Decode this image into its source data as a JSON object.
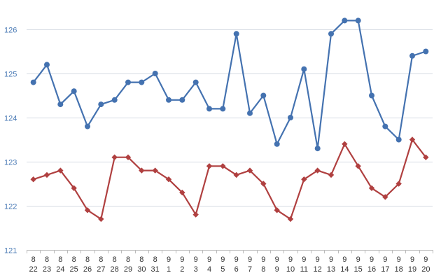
{
  "chart_data": {
    "type": "line",
    "categories": [
      [
        "8",
        "22"
      ],
      [
        "8",
        "23"
      ],
      [
        "8",
        "24"
      ],
      [
        "8",
        "25"
      ],
      [
        "8",
        "26"
      ],
      [
        "8",
        "27"
      ],
      [
        "8",
        "28"
      ],
      [
        "8",
        "29"
      ],
      [
        "8",
        "30"
      ],
      [
        "8",
        "31"
      ],
      [
        "9",
        "1"
      ],
      [
        "9",
        "2"
      ],
      [
        "9",
        "3"
      ],
      [
        "9",
        "4"
      ],
      [
        "9",
        "5"
      ],
      [
        "9",
        "6"
      ],
      [
        "9",
        "7"
      ],
      [
        "9",
        "8"
      ],
      [
        "9",
        "9"
      ],
      [
        "9",
        "10"
      ],
      [
        "9",
        "11"
      ],
      [
        "9",
        "12"
      ],
      [
        "9",
        "13"
      ],
      [
        "9",
        "14"
      ],
      [
        "9",
        "15"
      ],
      [
        "9",
        "16"
      ],
      [
        "9",
        "17"
      ],
      [
        "9",
        "18"
      ],
      [
        "9",
        "19"
      ],
      [
        "9",
        "20"
      ]
    ],
    "ylim": [
      121,
      126
    ],
    "yticks": [
      121,
      122,
      123,
      124,
      125,
      126
    ],
    "grid": true,
    "series": [
      {
        "color": "#4472b0",
        "marker": "circle",
        "values": [
          124.8,
          125.2,
          124.3,
          124.6,
          123.8,
          124.3,
          124.4,
          124.8,
          124.8,
          125.0,
          124.4,
          124.4,
          124.8,
          124.2,
          124.2,
          125.9,
          124.1,
          124.5,
          123.4,
          124.0,
          125.1,
          123.3,
          125.9,
          126.2,
          126.2,
          124.5,
          123.8,
          123.5,
          125.4,
          125.5
        ]
      },
      {
        "color": "#b04040",
        "marker": "diamond",
        "values": [
          122.6,
          122.7,
          122.8,
          122.4,
          121.9,
          121.7,
          123.1,
          123.1,
          122.8,
          122.8,
          122.6,
          122.3,
          121.8,
          122.9,
          122.9,
          122.7,
          122.8,
          122.5,
          121.9,
          121.7,
          122.6,
          122.8,
          122.7,
          123.4,
          122.9,
          122.4,
          122.2,
          122.5,
          123.5,
          123.1
        ]
      }
    ]
  }
}
